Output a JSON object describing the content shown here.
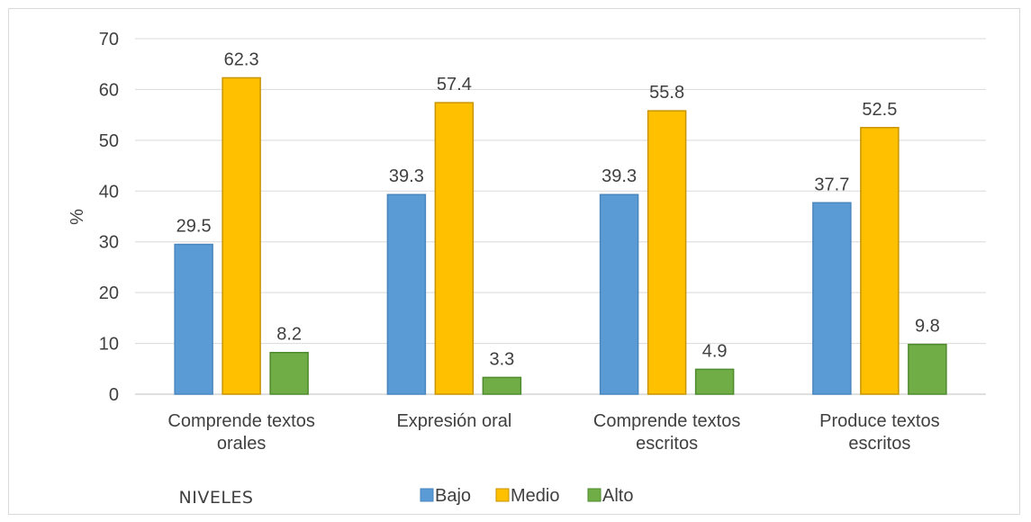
{
  "chart_data": {
    "type": "bar",
    "categories": [
      [
        "Comprende textos",
        "orales"
      ],
      [
        "Expresión oral"
      ],
      [
        "Comprende textos",
        "escritos"
      ],
      [
        "Produce textos",
        "escritos"
      ]
    ],
    "series": [
      {
        "name": "Bajo",
        "color": "#5b9bd5",
        "edge": "#4a86be",
        "values": [
          29.5,
          39.3,
          39.3,
          37.7
        ]
      },
      {
        "name": "Medio",
        "color": "#ffc000",
        "edge": "#c89400",
        "values": [
          62.3,
          57.4,
          55.8,
          52.5
        ]
      },
      {
        "name": "Alto",
        "color": "#70ad47",
        "edge": "#4e8a2e",
        "values": [
          8.2,
          3.3,
          4.9,
          9.8
        ]
      }
    ],
    "ylabel": "%",
    "xlabel": "NIVELES",
    "ylim": [
      0,
      70
    ],
    "yticks": [
      0,
      10,
      20,
      30,
      40,
      50,
      60,
      70
    ],
    "grid": true,
    "legend_position": "bottom"
  }
}
